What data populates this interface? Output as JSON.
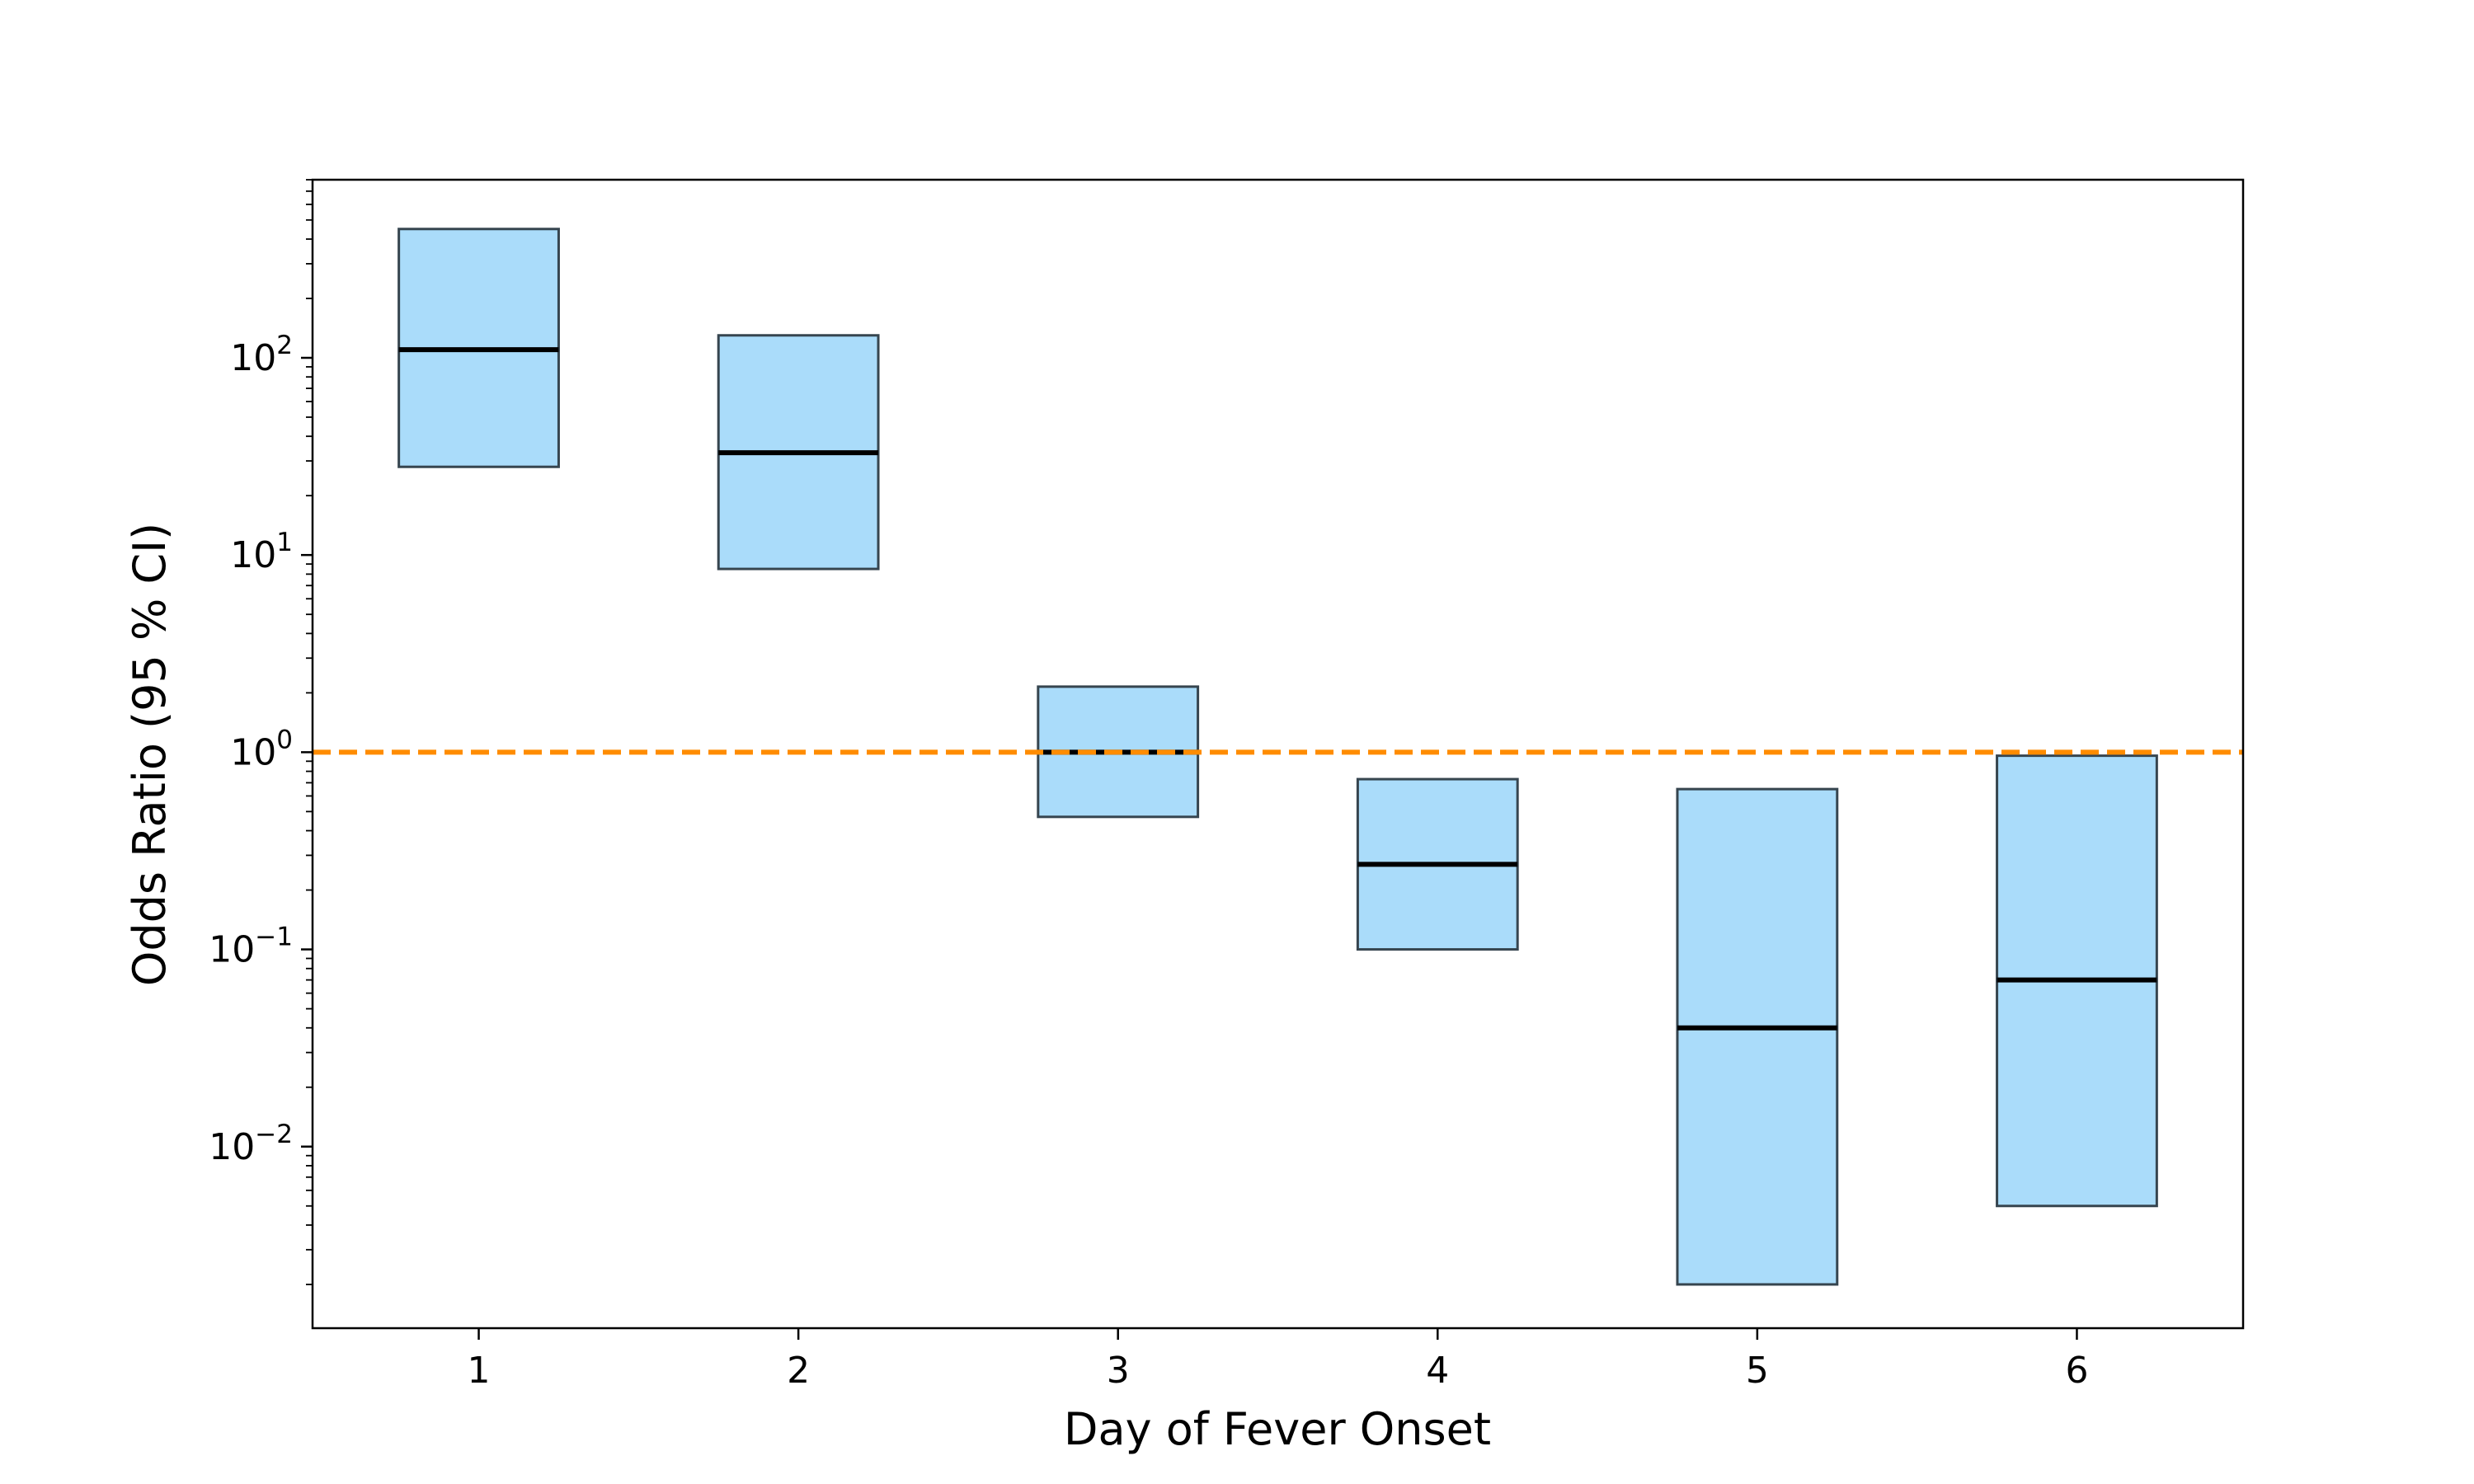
{
  "chart_data": {
    "type": "box",
    "xlabel": "Day of Fever Onset",
    "ylabel": "Odds Ratio (95 % CI)",
    "yscale": "log",
    "ylim": [
      0.0012,
      800
    ],
    "xlim": [
      0.48,
      6.52
    ],
    "categories": [
      "1",
      "2",
      "3",
      "4",
      "5",
      "6"
    ],
    "y_ticks": [
      {
        "value": 0.01,
        "base": "10",
        "exp": "−2"
      },
      {
        "value": 0.1,
        "base": "10",
        "exp": "−1"
      },
      {
        "value": 1,
        "base": "10",
        "exp": "0"
      },
      {
        "value": 10,
        "base": "10",
        "exp": "1"
      },
      {
        "value": 100,
        "base": "10",
        "exp": "2"
      }
    ],
    "series": [
      {
        "boxes": [
          {
            "x": 1,
            "lower": 28,
            "estimate": 110,
            "upper": 450
          },
          {
            "x": 2,
            "lower": 8.5,
            "estimate": 33,
            "upper": 130
          },
          {
            "x": 3,
            "lower": 0.47,
            "estimate": 1.0,
            "upper": 2.15
          },
          {
            "x": 4,
            "lower": 0.1,
            "estimate": 0.27,
            "upper": 0.73
          },
          {
            "x": 5,
            "lower": 0.002,
            "estimate": 0.04,
            "upper": 0.65
          },
          {
            "x": 6,
            "lower": 0.005,
            "estimate": 0.07,
            "upper": 0.96
          }
        ]
      }
    ],
    "reference_line": {
      "y": 1,
      "style": "dashed"
    },
    "colors": {
      "box_fill": "#aadcfa",
      "box_edge": "#36454f",
      "median": "#000000",
      "reference": "#ff8c00"
    },
    "grid": false,
    "legend": "none"
  }
}
